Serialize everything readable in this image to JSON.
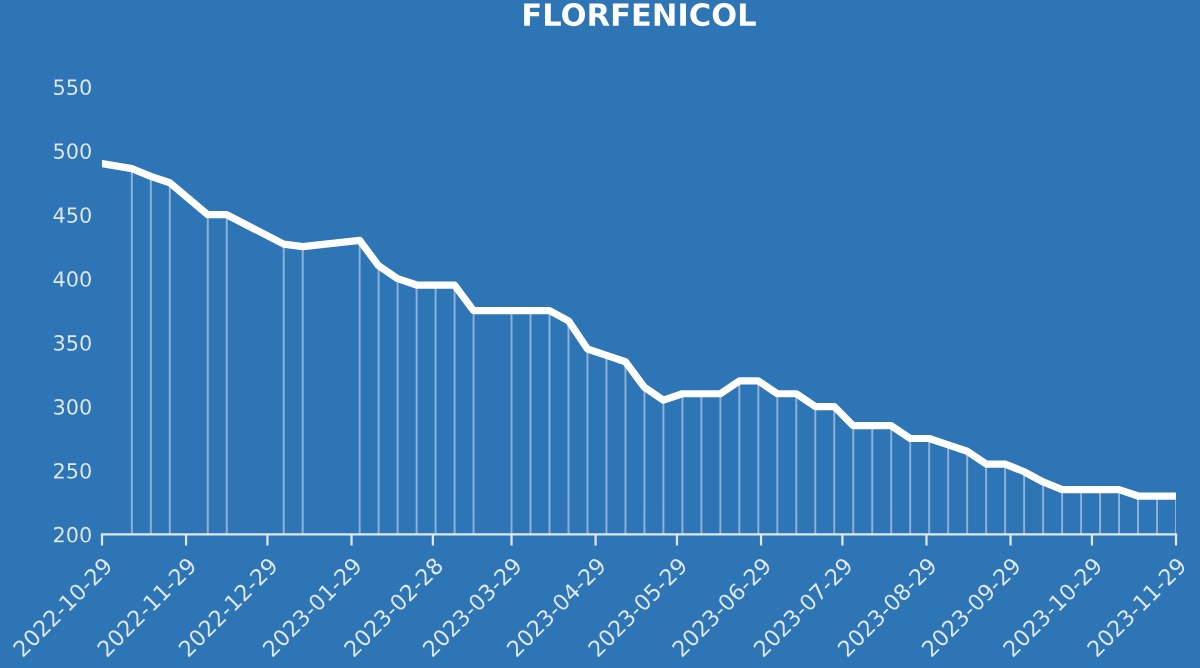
{
  "chart_data": {
    "type": "line",
    "title": "FLORFENICOL",
    "x": [
      "2022-10-29",
      "2022-11-09",
      "2022-11-16",
      "2022-11-23",
      "2022-12-07",
      "2022-12-14",
      "2023-01-04",
      "2023-01-11",
      "2023-02-01",
      "2023-02-08",
      "2023-02-15",
      "2023-02-22",
      "2023-03-01",
      "2023-03-08",
      "2023-03-15",
      "2023-03-29",
      "2023-04-05",
      "2023-04-12",
      "2023-04-19",
      "2023-04-26",
      "2023-05-03",
      "2023-05-10",
      "2023-05-17",
      "2023-05-24",
      "2023-05-31",
      "2023-06-07",
      "2023-06-14",
      "2023-06-21",
      "2023-06-28",
      "2023-07-05",
      "2023-07-12",
      "2023-07-19",
      "2023-07-26",
      "2023-08-02",
      "2023-08-09",
      "2023-08-16",
      "2023-08-23",
      "2023-08-30",
      "2023-09-06",
      "2023-09-13",
      "2023-09-20",
      "2023-09-27",
      "2023-10-04",
      "2023-10-11",
      "2023-10-18",
      "2023-10-25",
      "2023-11-01",
      "2023-11-08",
      "2023-11-15",
      "2023-11-22",
      "2023-11-29"
    ],
    "series": [
      {
        "color": "#ffffff",
        "values": [
          490,
          486,
          480,
          475,
          450,
          450,
          427,
          425,
          430,
          410,
          400,
          395,
          395,
          395,
          375,
          375,
          375,
          375,
          367,
          345,
          340,
          335,
          315,
          305,
          310,
          310,
          310,
          320,
          320,
          310,
          310,
          300,
          300,
          285,
          285,
          285,
          275,
          275,
          270,
          265,
          255,
          255,
          249,
          241,
          235,
          235,
          235,
          235,
          230,
          230,
          230
        ],
        "errors": [
          null,
          [
            200,
            486
          ],
          [
            200,
            480
          ],
          [
            200,
            475
          ],
          [
            200,
            450
          ],
          [
            200,
            450
          ],
          [
            200,
            427
          ],
          [
            200,
            425
          ],
          [
            200,
            430
          ],
          [
            200,
            410
          ],
          [
            200,
            400
          ],
          [
            200,
            395
          ],
          [
            200,
            395
          ],
          [
            200,
            395
          ],
          [
            200,
            375
          ],
          [
            200,
            375
          ],
          [
            200,
            375
          ],
          [
            200,
            375
          ],
          [
            200,
            367
          ],
          [
            200,
            345
          ],
          [
            200,
            340
          ],
          [
            200,
            335
          ],
          [
            200,
            315
          ],
          [
            200,
            305
          ],
          [
            200,
            310
          ],
          [
            200,
            310
          ],
          [
            200,
            310
          ],
          [
            200,
            320
          ],
          [
            200,
            320
          ],
          [
            200,
            310
          ],
          [
            200,
            310
          ],
          [
            200,
            300
          ],
          [
            200,
            300
          ],
          [
            200,
            285
          ],
          [
            200,
            285
          ],
          [
            200,
            285
          ],
          [
            200,
            275
          ],
          [
            200,
            275
          ],
          [
            200,
            270
          ],
          [
            200,
            265
          ],
          [
            200,
            255
          ],
          [
            200,
            255
          ],
          [
            200,
            249
          ],
          [
            200,
            241
          ],
          [
            200,
            235
          ],
          [
            200,
            235
          ],
          [
            200,
            235
          ],
          [
            200,
            235
          ],
          [
            200,
            230
          ],
          [
            200,
            230
          ],
          [
            200,
            230
          ]
        ]
      }
    ],
    "xlim": [
      "2022-10-29",
      "2023-11-29"
    ],
    "xticks": [
      "2022-10-29",
      "2022-11-29",
      "2022-12-29",
      "2023-01-29",
      "2023-02-28",
      "2023-03-29",
      "2023-04-29",
      "2023-05-29",
      "2023-06-29",
      "2023-07-29",
      "2023-08-29",
      "2023-09-29",
      "2023-10-29",
      "2023-11-29"
    ],
    "ylim": [
      200,
      550
    ],
    "yticks": [
      200,
      250,
      300,
      350,
      400,
      450,
      500,
      550
    ],
    "grid": false,
    "legend": false,
    "marker": "none",
    "line_style": "solid"
  }
}
